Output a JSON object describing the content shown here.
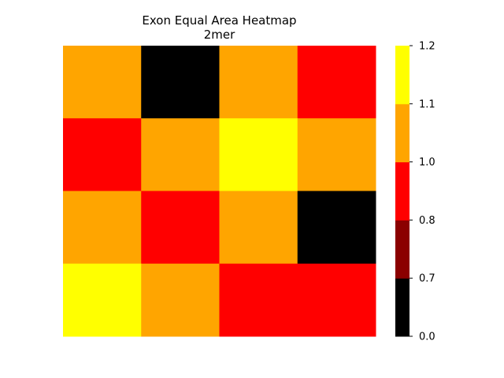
{
  "chart_data": {
    "type": "heatmap",
    "title": "Exon Equal Area Heatmap",
    "subtitle": "2mer",
    "rows": 4,
    "cols": 4,
    "values": [
      [
        1.05,
        0.0,
        1.05,
        0.9
      ],
      [
        0.9,
        1.05,
        1.15,
        1.05
      ],
      [
        1.05,
        0.9,
        1.05,
        0.0
      ],
      [
        1.15,
        1.05,
        0.9,
        0.9
      ]
    ],
    "colorbar": {
      "ticks": [
        "0.0",
        "0.7",
        "0.8",
        "1.0",
        "1.1",
        "1.2"
      ],
      "bins": [
        {
          "min": 0.0,
          "max": 0.7,
          "color": "#000000"
        },
        {
          "min": 0.7,
          "max": 0.8,
          "color": "#8b0000"
        },
        {
          "min": 0.8,
          "max": 1.0,
          "color": "#ff0000"
        },
        {
          "min": 1.0,
          "max": 1.1,
          "color": "#ffa500"
        },
        {
          "min": 1.1,
          "max": 1.2,
          "color": "#ffff00"
        }
      ]
    },
    "axes_visible": false
  }
}
